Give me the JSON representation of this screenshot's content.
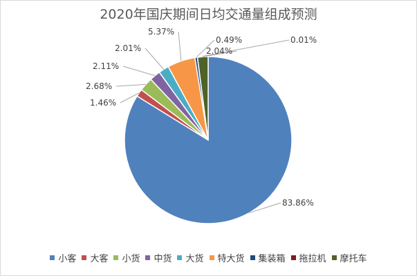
{
  "chart_data": {
    "type": "pie",
    "title": "2020年国庆期间日均交通量组成预测",
    "categories": [
      "小客",
      "大客",
      "小货",
      "中货",
      "大货",
      "特大货",
      "集装箱",
      "拖拉机",
      "摩托车"
    ],
    "values": [
      83.86,
      1.46,
      2.68,
      2.11,
      2.01,
      5.37,
      0.49,
      0.01,
      2.04
    ],
    "data_labels": [
      "83.86%",
      "1.46%",
      "2.68%",
      "2.11%",
      "2.01%",
      "5.37%",
      "0.49%",
      "0.01%",
      "2.04%"
    ],
    "colors": [
      "#4f81bd",
      "#c0504d",
      "#9bbb59",
      "#8064a2",
      "#4bacc6",
      "#f79646",
      "#1f497d",
      "#7f1d1d",
      "#4f6228"
    ],
    "legend_position": "bottom"
  }
}
